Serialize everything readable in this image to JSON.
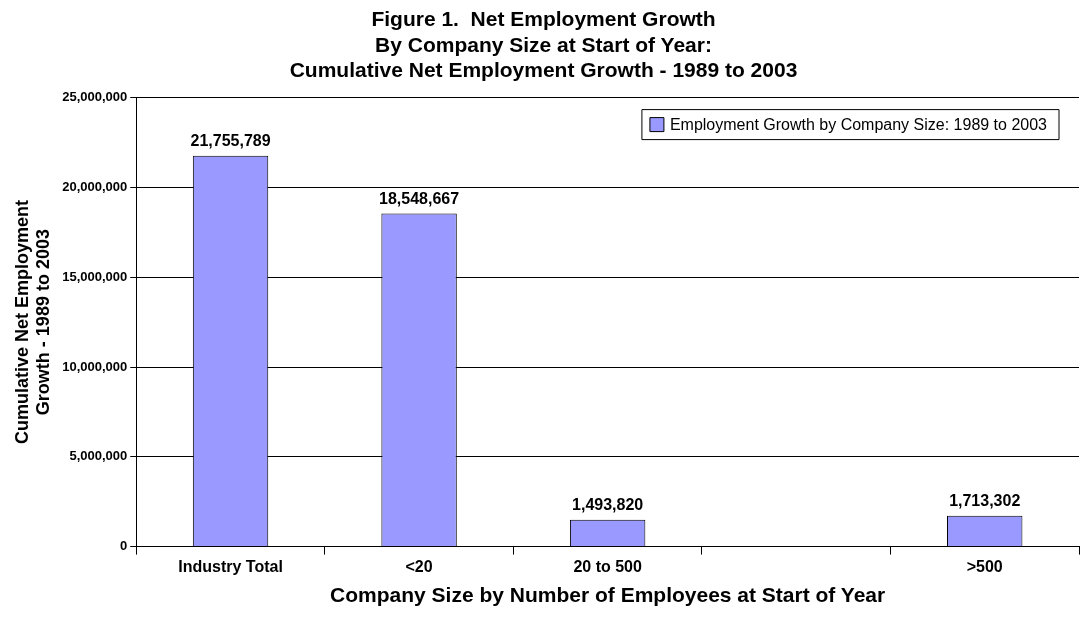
{
  "chart_data": {
    "type": "bar",
    "title": "Figure 1.  Net Employment Growth\nBy Company Size at Start of Year:\nCumulative Net Employment Growth - 1989 to 2003",
    "xlabel": "Company Size by Number of Employees at Start of Year",
    "ylabel": "Cumulative Net Employment\nGrowth - 1989 to 2003",
    "categories": [
      "Industry Total",
      "<20",
      "20 to 500",
      null,
      ">500"
    ],
    "series": [
      {
        "name": "Employment Growth by Company Size: 1989 to 2003",
        "color": "#9999ff",
        "values": [
          21755789,
          18548667,
          1493820,
          null,
          1713302
        ],
        "value_labels": [
          "21,755,789",
          "18,548,667",
          "1,493,820",
          null,
          "1,713,302"
        ]
      }
    ],
    "ylim": [
      0,
      25000000
    ],
    "yticks": [
      {
        "value": 0,
        "label": "0"
      },
      {
        "value": 5000000,
        "label": "5,000,000"
      },
      {
        "value": 10000000,
        "label": "10,000,000"
      },
      {
        "value": 15000000,
        "label": "15,000,000"
      },
      {
        "value": 20000000,
        "label": "20,000,000"
      },
      {
        "value": 25000000,
        "label": "25,000,000"
      }
    ],
    "grid": "y",
    "legend": "top right"
  }
}
